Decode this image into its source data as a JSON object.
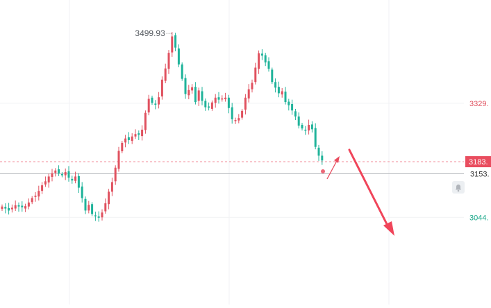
{
  "chart_data": {
    "type": "candlestick",
    "title": "",
    "xlabel": "",
    "ylabel": "",
    "ylim": [
      2885,
      3535
    ],
    "grid": true,
    "y_ticks": [
      {
        "value": 3329,
        "label": "3329.",
        "color": "#e0515f"
      },
      {
        "value": 3044,
        "label": "3044.",
        "color": "#1aa88a"
      }
    ],
    "max_annotation": {
      "value": 3499.93,
      "label": "3499.93"
    },
    "price_lines": [
      {
        "value": 3183,
        "label": "3183.",
        "style": "dashed",
        "color": "#e94d5f"
      },
      {
        "value": 3153,
        "label": "3153.",
        "style": "solid",
        "color": "#b5b8bd"
      }
    ],
    "bars_approx_closes": [
      3071,
      3066,
      3061,
      3068,
      3074,
      3071,
      3069,
      3072,
      3081,
      3092,
      3098,
      3110,
      3124,
      3134,
      3146,
      3154,
      3161,
      3154,
      3149,
      3157,
      3143,
      3136,
      3146,
      3118,
      3092,
      3061,
      3075,
      3052,
      3047,
      3043,
      3056,
      3079,
      3108,
      3132,
      3168,
      3210,
      3230,
      3241,
      3237,
      3246,
      3252,
      3250,
      3263,
      3305,
      3340,
      3330,
      3326,
      3344,
      3388,
      3416,
      3455,
      3496,
      3468,
      3426,
      3390,
      3352,
      3362,
      3369,
      3332,
      3361,
      3335,
      3319,
      3318,
      3331,
      3343,
      3338,
      3341,
      3343,
      3317,
      3289,
      3287,
      3292,
      3310,
      3343,
      3364,
      3380,
      3418,
      3454,
      3448,
      3431,
      3415,
      3382,
      3368,
      3354,
      3359,
      3332,
      3324,
      3311,
      3296,
      3273,
      3266,
      3262,
      3275,
      3264,
      3220,
      3198,
      3186
    ],
    "colors": {
      "up": "#e0515f",
      "down": "#1fb39a"
    }
  },
  "annotations": [
    {
      "kind": "arrow",
      "color": "#e94d5f",
      "direction": "up-right"
    },
    {
      "kind": "arrow",
      "color": "#f0455a",
      "direction": "down"
    }
  ],
  "bell_icon": "bell-icon"
}
